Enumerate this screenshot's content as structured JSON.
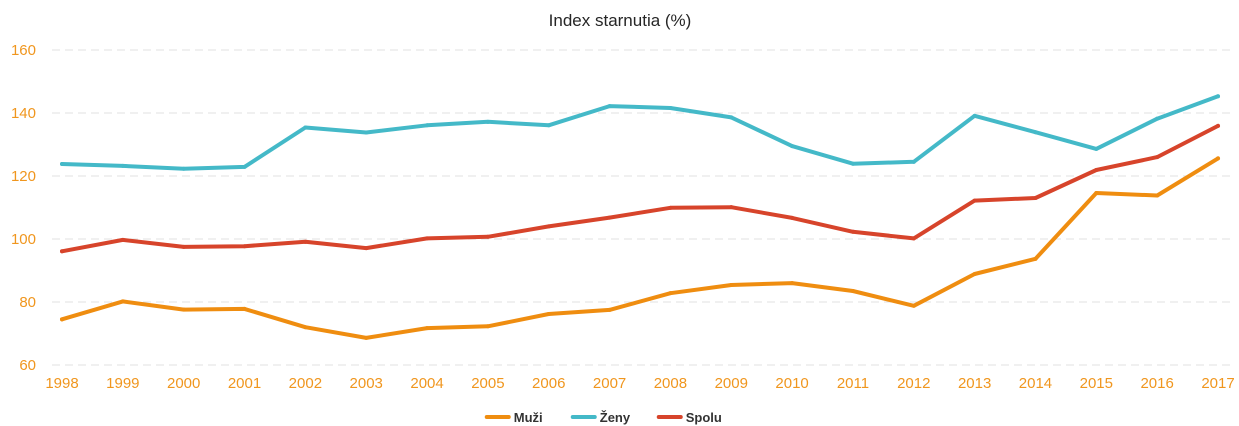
{
  "chart_data": {
    "type": "line",
    "title": "Index starnutia (%)",
    "xlabel": "",
    "ylabel": "",
    "x": [
      "1998",
      "1999",
      "2000",
      "2001",
      "2002",
      "2003",
      "2004",
      "2005",
      "2006",
      "2007",
      "2008",
      "2009",
      "2010",
      "2011",
      "2012",
      "2013",
      "2014",
      "2015",
      "2016",
      "2017"
    ],
    "ylim": [
      60,
      160
    ],
    "yticks": [
      60,
      80,
      100,
      120,
      140,
      160
    ],
    "grid": "horizontal dashed",
    "legend_position": "bottom-center",
    "tick_color": "#f0961e",
    "series": [
      {
        "name": "Muži",
        "color": "#ef8d10",
        "values": [
          74.5,
          80.2,
          77.6,
          77.8,
          72.0,
          68.6,
          71.7,
          72.3,
          76.2,
          77.5,
          82.8,
          85.4,
          86.0,
          83.5,
          78.8,
          88.9,
          93.7,
          114.6,
          113.8,
          125.6
        ]
      },
      {
        "name": "Ženy",
        "color": "#44b9c8",
        "values": [
          123.8,
          123.2,
          122.3,
          122.9,
          135.4,
          133.8,
          136.1,
          137.2,
          136.1,
          142.2,
          141.6,
          138.6,
          129.5,
          123.9,
          124.5,
          139.1,
          133.9,
          128.6,
          138.2,
          145.3
        ]
      },
      {
        "name": "Spolu",
        "color": "#d7442b",
        "values": [
          96.1,
          99.7,
          97.5,
          97.7,
          99.1,
          97.1,
          100.2,
          100.7,
          104.0,
          106.8,
          109.9,
          110.1,
          106.7,
          102.3,
          100.2,
          112.2,
          113.0,
          121.9,
          126.0,
          135.9
        ]
      }
    ]
  }
}
